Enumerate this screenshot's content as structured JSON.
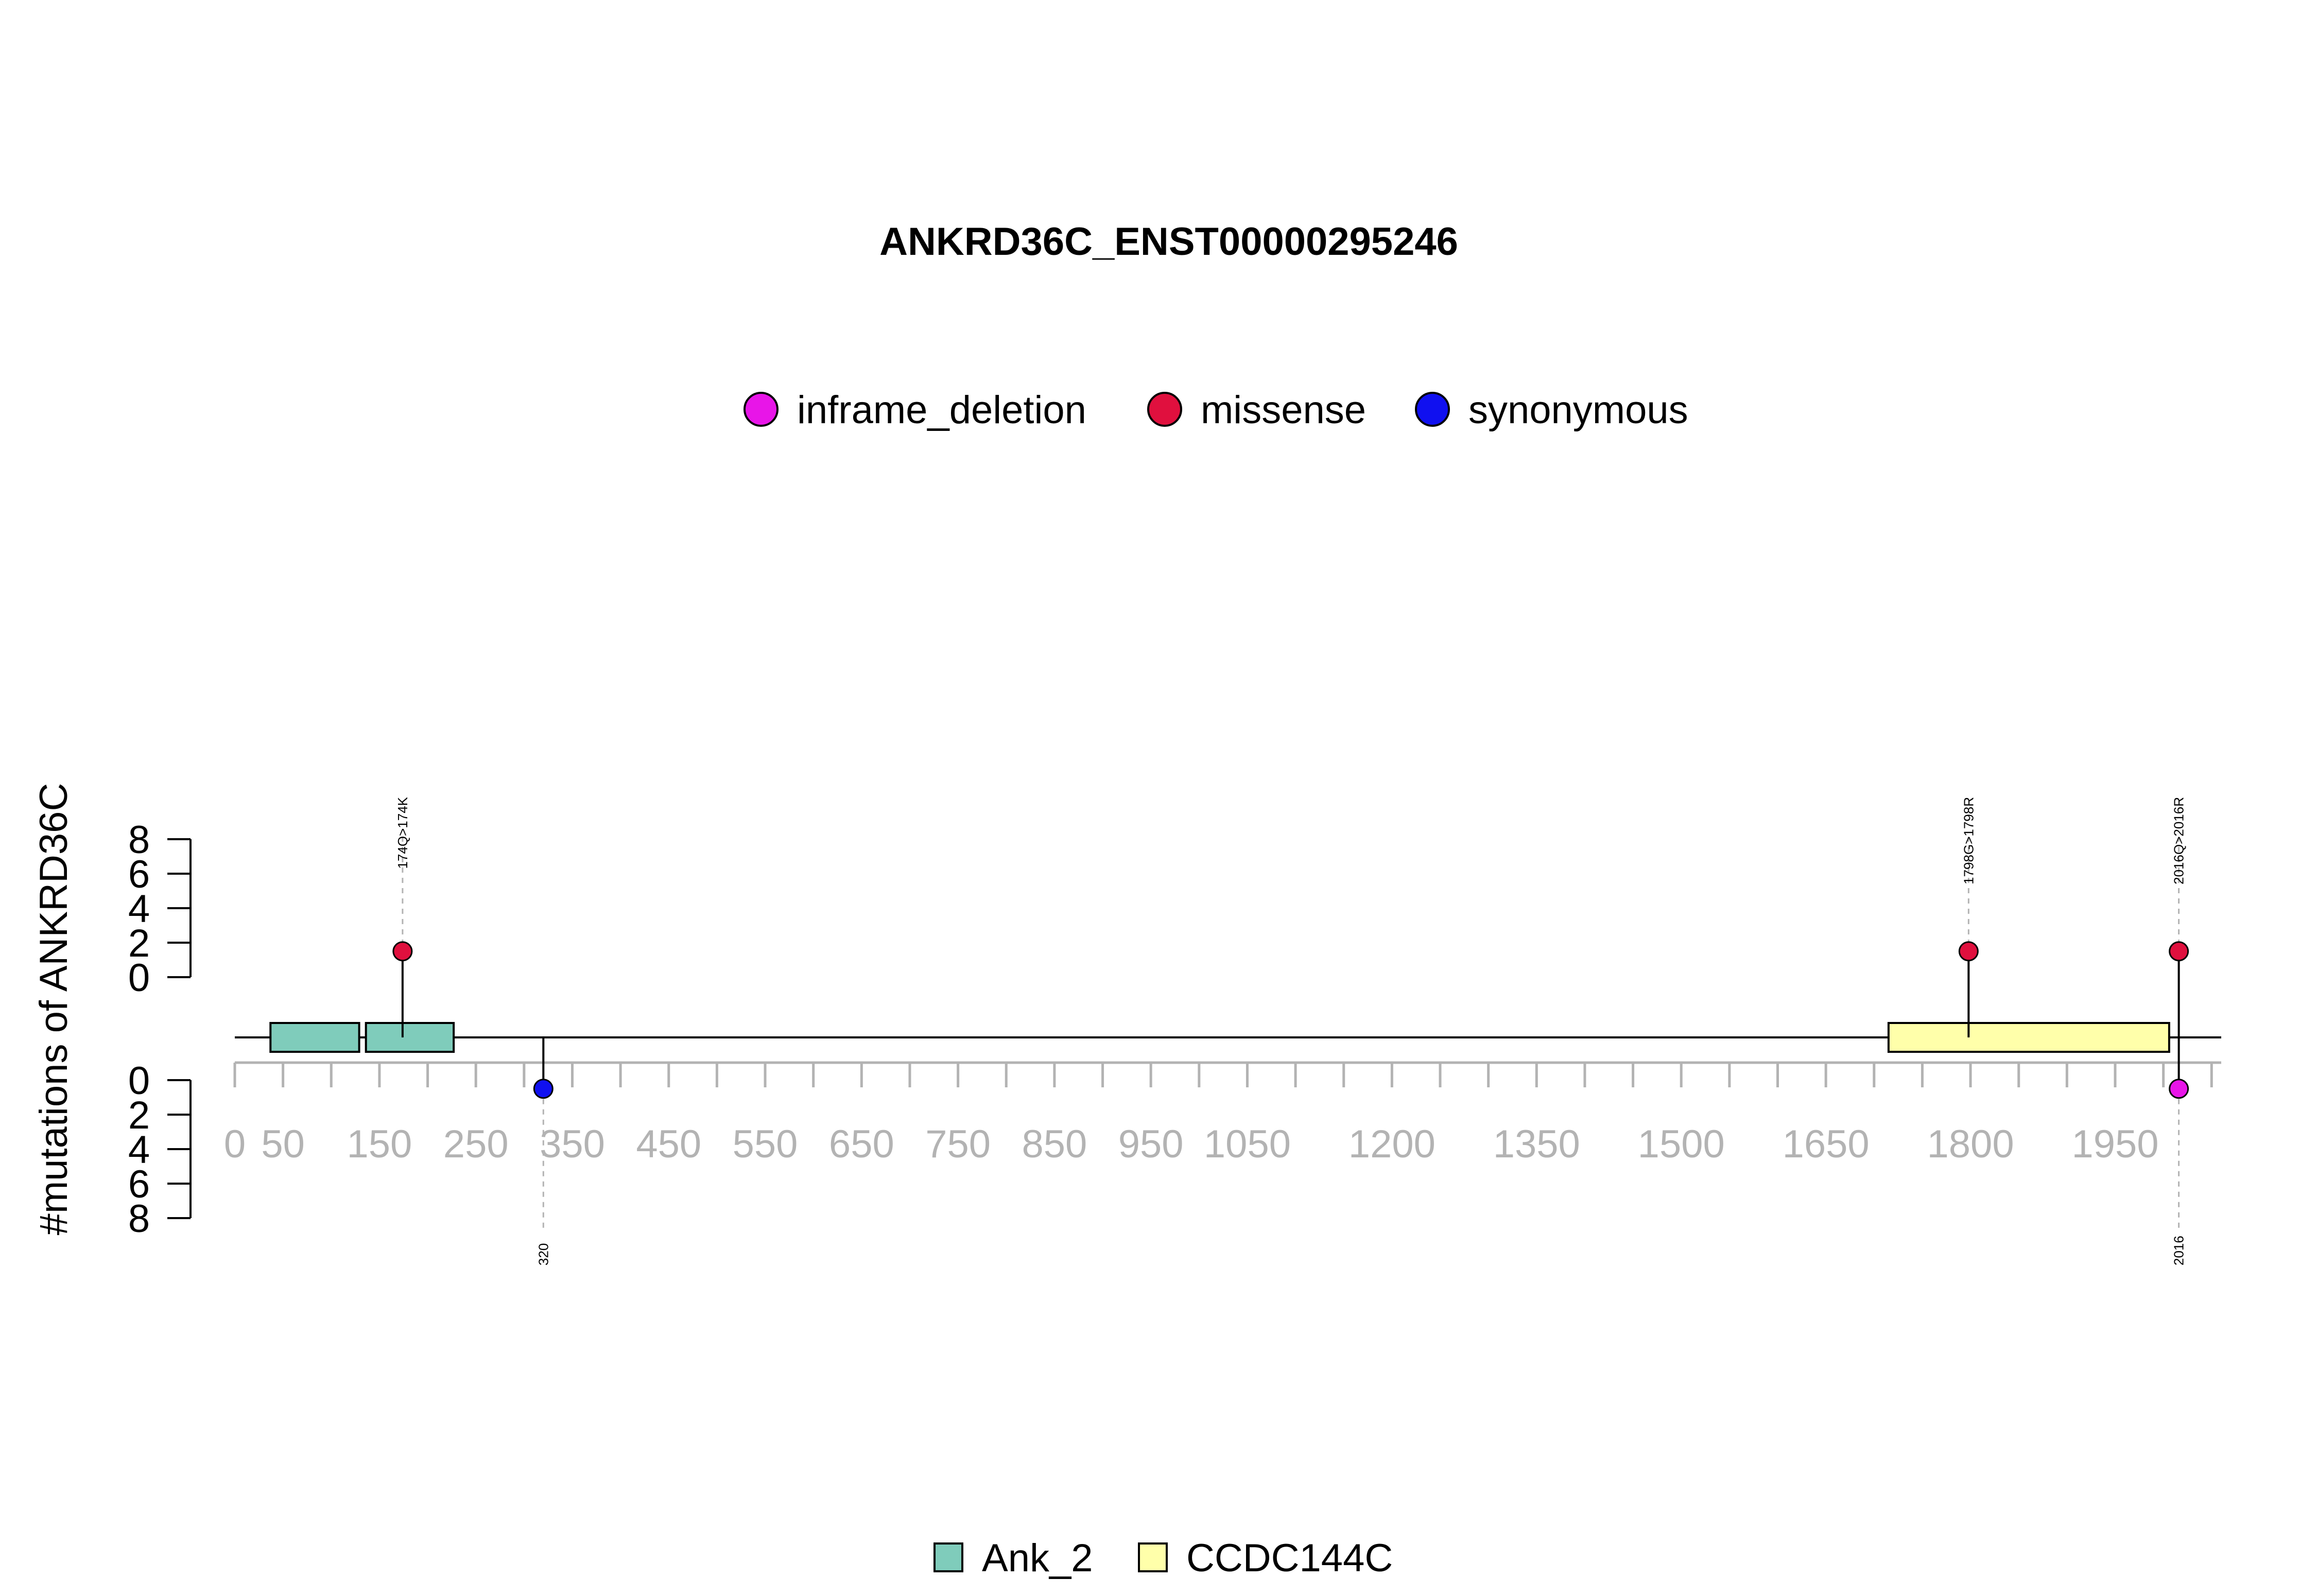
{
  "chart_data": {
    "type": "lollipop",
    "title": "ANKRD36C_ENST00000295246",
    "ylabel": "#mutations of ANKRD36C",
    "xlim": [
      0,
      2060
    ],
    "ylim_top": [
      0,
      8
    ],
    "ylim_bottom": [
      0,
      8
    ],
    "y_ticks": [
      "0",
      "2",
      "4",
      "6",
      "8"
    ],
    "x_tick_labels": [
      {
        "value": 0,
        "label": "0"
      },
      {
        "value": 50,
        "label": "50"
      },
      {
        "value": 150,
        "label": "150"
      },
      {
        "value": 250,
        "label": "250"
      },
      {
        "value": 350,
        "label": "350"
      },
      {
        "value": 450,
        "label": "450"
      },
      {
        "value": 550,
        "label": "550"
      },
      {
        "value": 650,
        "label": "650"
      },
      {
        "value": 750,
        "label": "750"
      },
      {
        "value": 850,
        "label": "850"
      },
      {
        "value": 950,
        "label": "950"
      },
      {
        "value": 1050,
        "label": "1050"
      },
      {
        "value": 1200,
        "label": "1200"
      },
      {
        "value": 1350,
        "label": "1350"
      },
      {
        "value": 1500,
        "label": "1500"
      },
      {
        "value": 1650,
        "label": "1650"
      },
      {
        "value": 1800,
        "label": "1800"
      },
      {
        "value": 1950,
        "label": "1950"
      }
    ],
    "x_minor_ticks": [
      0,
      50,
      100,
      150,
      200,
      250,
      300,
      350,
      400,
      450,
      500,
      550,
      600,
      650,
      700,
      750,
      800,
      850,
      900,
      950,
      1000,
      1050,
      1100,
      1150,
      1200,
      1250,
      1300,
      1350,
      1400,
      1450,
      1500,
      1550,
      1600,
      1650,
      1700,
      1750,
      1800,
      1850,
      1900,
      1950,
      2000,
      2050
    ],
    "mutation_legend": [
      {
        "name": "inframe_deletion",
        "color": "#e815e8"
      },
      {
        "name": "missense",
        "color": "#e0103e"
      },
      {
        "name": "synonymous",
        "color": "#1010f0"
      }
    ],
    "domain_legend": [
      {
        "name": "Ank_2",
        "color": "#7fccbb"
      },
      {
        "name": "CCDC144C",
        "color": "#ffffaa"
      }
    ],
    "domains": [
      {
        "name": "Ank_2",
        "start": 37,
        "end": 129,
        "color": "#7fccbb"
      },
      {
        "name": "Ank_2",
        "start": 136,
        "end": 227,
        "color": "#7fccbb"
      },
      {
        "name": "CCDC144C",
        "start": 1715,
        "end": 2006,
        "color": "#ffffaa"
      }
    ],
    "mutations": [
      {
        "position": 174,
        "count": 1,
        "side": "top",
        "type": "missense",
        "label": "174Q>174K"
      },
      {
        "position": 1798,
        "count": 1,
        "side": "top",
        "type": "missense",
        "label": "1798G>1798R"
      },
      {
        "position": 2016,
        "count": 1,
        "side": "top",
        "type": "missense",
        "label": "2016Q>2016R"
      },
      {
        "position": 320,
        "count": 1,
        "side": "bottom",
        "type": "synonymous",
        "label": "320"
      },
      {
        "position": 2016,
        "count": 1,
        "side": "bottom",
        "type": "inframe_deletion",
        "label": "2016"
      }
    ]
  }
}
